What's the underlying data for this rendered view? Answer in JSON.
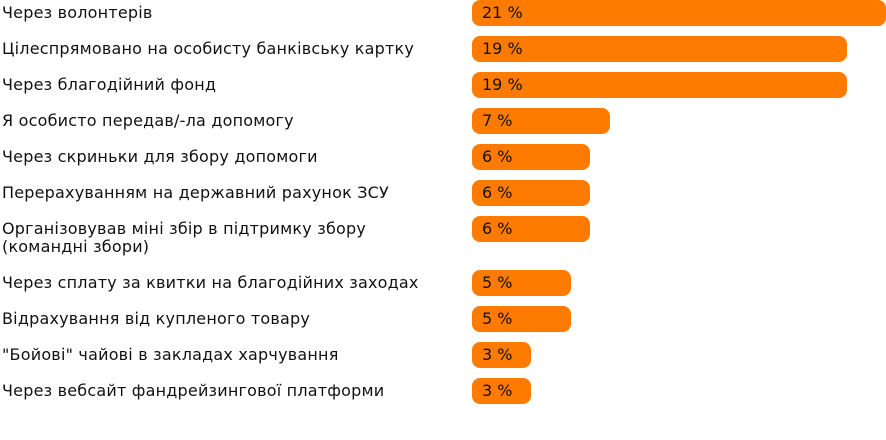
{
  "chart_data": {
    "type": "bar",
    "orientation": "horizontal",
    "color": "#ff7b00",
    "categories": [
      "Через волонтерів",
      "Цілеспрямовано на особисту банківську картку",
      "Через благодійний фонд",
      "Я особисто передав/-ла допомогу",
      "Через скриньки для збору допомоги",
      "Перерахуванням на державний рахунок ЗСУ",
      "Організовував міні збір в підтримку збору (командні збори)",
      "Через сплату за квитки на благодійних заходах",
      "Відрахування від купленого товару",
      "\"Бойові\" чайові в закладах харчування",
      "Через вебсайт фандрейзингової платформи"
    ],
    "values": [
      21,
      19,
      19,
      7,
      6,
      6,
      6,
      5,
      5,
      3,
      3
    ],
    "value_labels": [
      "21 %",
      "19 %",
      "19 %",
      "7 %",
      "6 %",
      "6 %",
      "6 %",
      "5 %",
      "5 %",
      "3 %",
      "3 %"
    ]
  }
}
